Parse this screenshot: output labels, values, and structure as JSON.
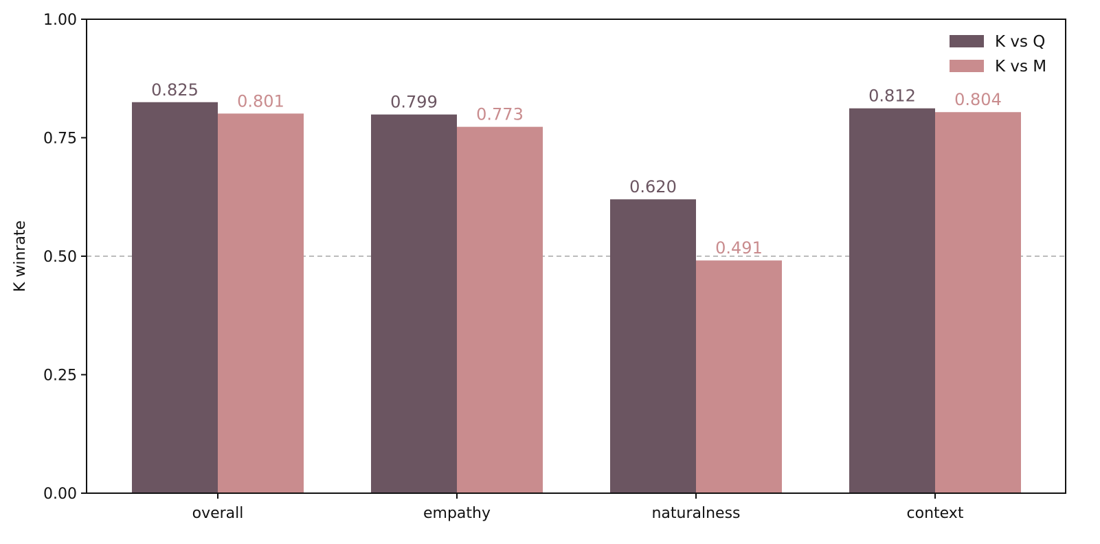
{
  "chart_data": {
    "type": "bar",
    "categories": [
      "overall",
      "empathy",
      "naturalness",
      "context"
    ],
    "series": [
      {
        "name": "K vs Q",
        "values": [
          0.825,
          0.799,
          0.62,
          0.812
        ],
        "color": "#6b5561"
      },
      {
        "name": "K vs M",
        "values": [
          0.801,
          0.773,
          0.491,
          0.804
        ],
        "color": "#c98c8e"
      }
    ],
    "value_labels": [
      [
        "0.825",
        "0.799",
        "0.620",
        "0.812"
      ],
      [
        "0.801",
        "0.773",
        "0.491",
        "0.804"
      ]
    ],
    "ylabel": "K winrate",
    "ylim": [
      0,
      1.0
    ],
    "yticks": [
      "0.00",
      "0.25",
      "0.50",
      "0.75",
      "1.00"
    ],
    "reference_line": {
      "y": 0.5,
      "style": "dashed",
      "color": "#bbbbbb"
    },
    "grid": false,
    "legend_position": "top-right"
  }
}
